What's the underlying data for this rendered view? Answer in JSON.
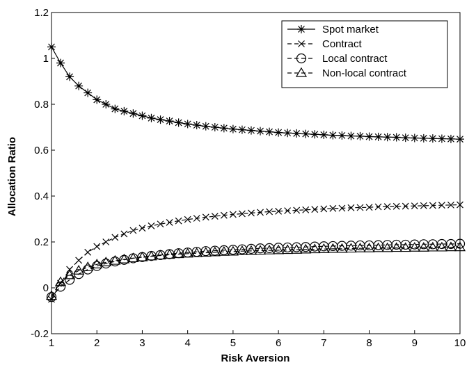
{
  "chart_data": {
    "type": "line",
    "title": "",
    "xlabel": "Risk Aversion",
    "ylabel": "Allocation Ratio",
    "xlim": [
      1,
      10
    ],
    "ylim": [
      -0.2,
      1.2
    ],
    "xticks": [
      "1",
      "2",
      "3",
      "4",
      "5",
      "6",
      "7",
      "8",
      "9",
      "10"
    ],
    "yticks": [
      "-0.2",
      "0",
      "0.2",
      "0.4",
      "0.6",
      "0.8",
      "1",
      "1.2"
    ],
    "grid": false,
    "legend_position": "top-right",
    "x": [
      1.0,
      1.2,
      1.4,
      1.6,
      1.8,
      2.0,
      2.2,
      2.4,
      2.6,
      2.8,
      3.0,
      3.2,
      3.4,
      3.6,
      3.8,
      4.0,
      4.2,
      4.4,
      4.6,
      4.8,
      5.0,
      5.2,
      5.4,
      5.6,
      5.8,
      6.0,
      6.2,
      6.4,
      6.6,
      6.8,
      7.0,
      7.2,
      7.4,
      7.6,
      7.8,
      8.0,
      8.2,
      8.4,
      8.6,
      8.8,
      9.0,
      9.2,
      9.4,
      9.6,
      9.8,
      10.0
    ],
    "series": [
      {
        "name": "Spot market",
        "marker": "asterisk",
        "line": "solid",
        "values": [
          1.05,
          0.98,
          0.92,
          0.88,
          0.85,
          0.82,
          0.8,
          0.78,
          0.77,
          0.76,
          0.75,
          0.74,
          0.733,
          0.727,
          0.72,
          0.714,
          0.709,
          0.704,
          0.7,
          0.696,
          0.692,
          0.689,
          0.686,
          0.683,
          0.68,
          0.677,
          0.675,
          0.673,
          0.671,
          0.669,
          0.667,
          0.665,
          0.664,
          0.662,
          0.661,
          0.659,
          0.658,
          0.657,
          0.656,
          0.654,
          0.653,
          0.652,
          0.651,
          0.65,
          0.649,
          0.648
        ]
      },
      {
        "name": "Contract",
        "marker": "x",
        "line": "dashed",
        "values": [
          -0.05,
          0.02,
          0.08,
          0.12,
          0.155,
          0.18,
          0.2,
          0.22,
          0.235,
          0.25,
          0.26,
          0.27,
          0.278,
          0.285,
          0.292,
          0.298,
          0.303,
          0.308,
          0.312,
          0.316,
          0.32,
          0.323,
          0.326,
          0.329,
          0.332,
          0.334,
          0.336,
          0.338,
          0.34,
          0.342,
          0.344,
          0.346,
          0.347,
          0.349,
          0.35,
          0.351,
          0.353,
          0.354,
          0.355,
          0.356,
          0.357,
          0.358,
          0.359,
          0.36,
          0.361,
          0.362
        ]
      },
      {
        "name": "Local contract",
        "marker": "circle",
        "line": "dashed",
        "values": [
          -0.04,
          0.005,
          0.035,
          0.06,
          0.08,
          0.095,
          0.106,
          0.115,
          0.122,
          0.129,
          0.134,
          0.139,
          0.143,
          0.147,
          0.151,
          0.154,
          0.157,
          0.16,
          0.162,
          0.164,
          0.166,
          0.168,
          0.17,
          0.172,
          0.173,
          0.175,
          0.176,
          0.177,
          0.178,
          0.18,
          0.181,
          0.182,
          0.183,
          0.184,
          0.185,
          0.185,
          0.186,
          0.187,
          0.188,
          0.188,
          0.189,
          0.19,
          0.19,
          0.191,
          0.191,
          0.192
        ]
      },
      {
        "name": "Non-local contract",
        "marker": "triangle",
        "line": "dashed",
        "values": [
          -0.035,
          0.025,
          0.055,
          0.075,
          0.09,
          0.102,
          0.111,
          0.118,
          0.124,
          0.129,
          0.133,
          0.137,
          0.141,
          0.144,
          0.147,
          0.149,
          0.151,
          0.153,
          0.155,
          0.157,
          0.158,
          0.16,
          0.161,
          0.162,
          0.163,
          0.164,
          0.165,
          0.166,
          0.167,
          0.168,
          0.169,
          0.17,
          0.17,
          0.171,
          0.172,
          0.172,
          0.173,
          0.173,
          0.174,
          0.174,
          0.175,
          0.175,
          0.176,
          0.176,
          0.177,
          0.177
        ]
      }
    ]
  }
}
